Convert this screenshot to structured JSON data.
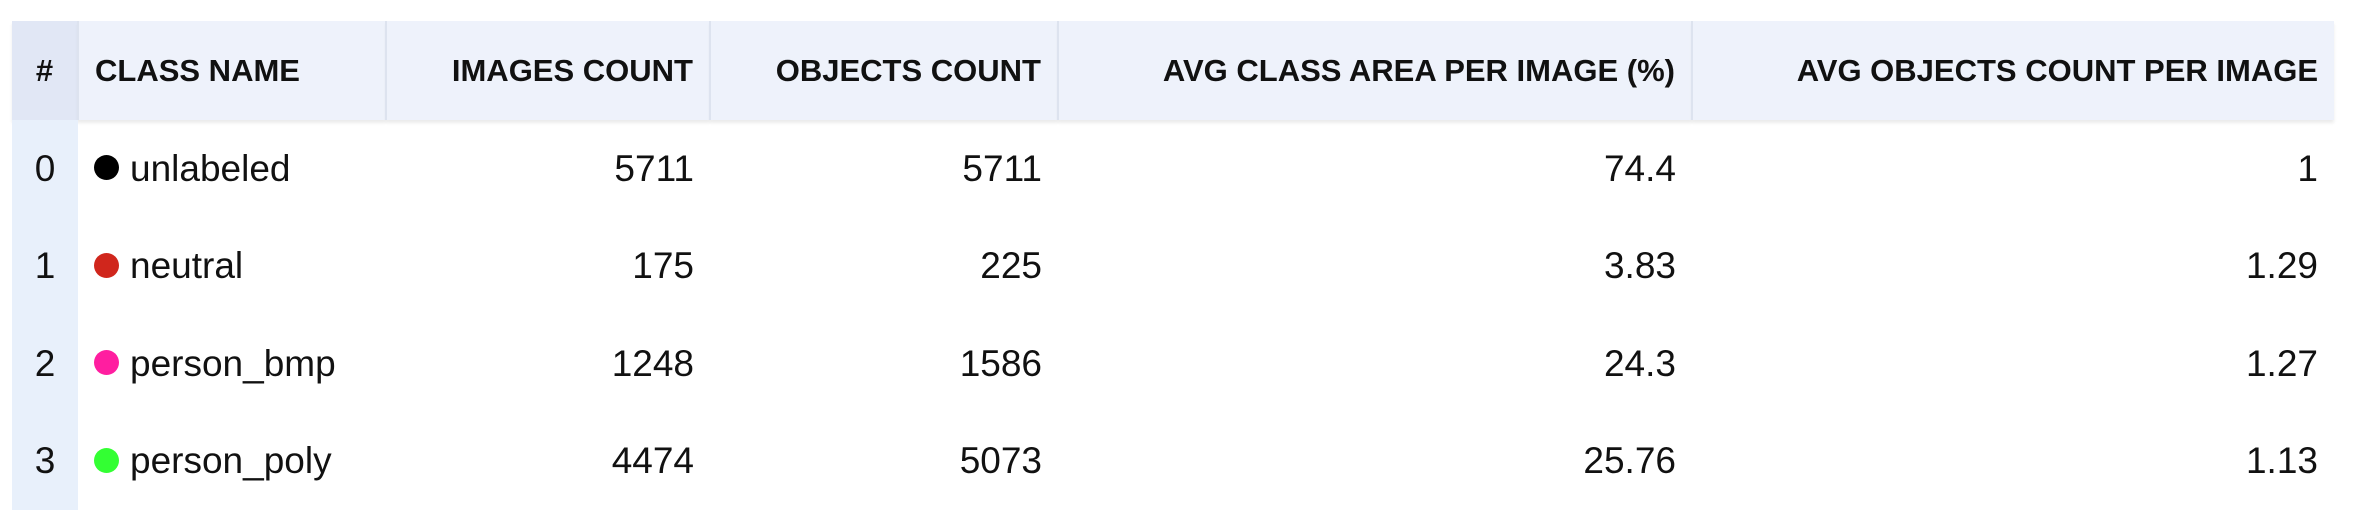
{
  "table": {
    "headers": {
      "index": "#",
      "class_name": "CLASS NAME",
      "images_count": "IMAGES COUNT",
      "objects_count": "OBJECTS COUNT",
      "avg_area": "AVG CLASS AREA PER IMAGE (%)",
      "avg_objects": "AVG OBJECTS COUNT PER IMAGE"
    },
    "rows": [
      {
        "index": "0",
        "class_name": "unlabeled",
        "color": "#000000",
        "images_count": "5711",
        "objects_count": "5711",
        "avg_area": "74.4",
        "avg_objects": "1"
      },
      {
        "index": "1",
        "class_name": "neutral",
        "color": "#d0261c",
        "images_count": "175",
        "objects_count": "225",
        "avg_area": "3.83",
        "avg_objects": "1.29"
      },
      {
        "index": "2",
        "class_name": "person_bmp",
        "color": "#ff1ea0",
        "images_count": "1248",
        "objects_count": "1586",
        "avg_area": "24.3",
        "avg_objects": "1.27"
      },
      {
        "index": "3",
        "class_name": "person_poly",
        "color": "#33ff33",
        "images_count": "4474",
        "objects_count": "5073",
        "avg_area": "25.76",
        "avg_objects": "1.13"
      }
    ]
  }
}
